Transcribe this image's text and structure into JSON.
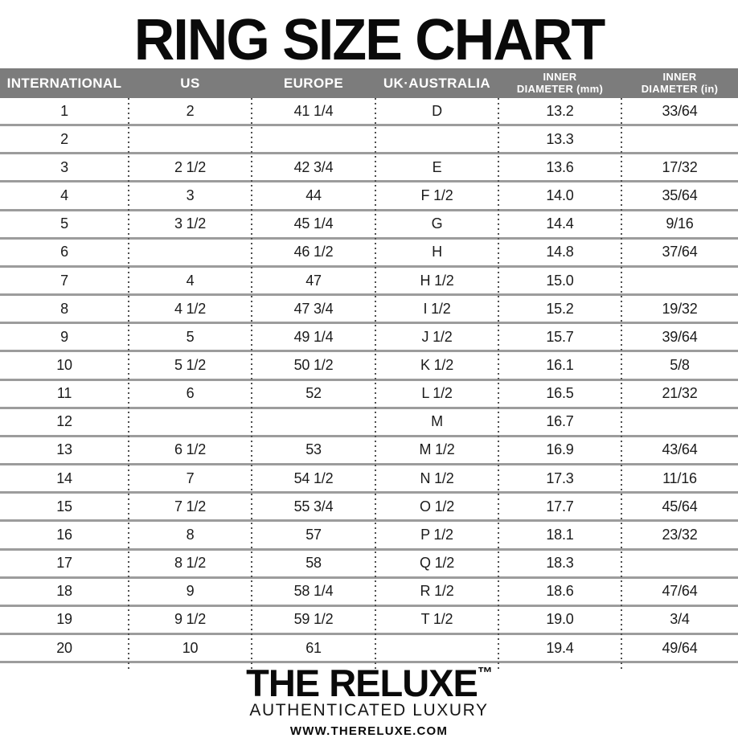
{
  "title": "RING SIZE CHART",
  "chart_data": {
    "type": "table",
    "title": "RING SIZE CHART",
    "columns": [
      "INTERNATIONAL",
      "US",
      "EUROPE",
      "UK·AUSTRALIA",
      "INNER DIAMETER (mm)",
      "INNER DIAMETER (in)"
    ],
    "rows": [
      [
        "1",
        "2",
        "41 1/4",
        "D",
        "13.2",
        "33/64"
      ],
      [
        "2",
        "",
        "",
        "",
        "13.3",
        ""
      ],
      [
        "3",
        "2 1/2",
        "42 3/4",
        "E",
        "13.6",
        "17/32"
      ],
      [
        "4",
        "3",
        "44",
        "F 1/2",
        "14.0",
        "35/64"
      ],
      [
        "5",
        "3 1/2",
        "45 1/4",
        "G",
        "14.4",
        "9/16"
      ],
      [
        "6",
        "",
        "46 1/2",
        "H",
        "14.8",
        "37/64"
      ],
      [
        "7",
        "4",
        "47",
        "H 1/2",
        "15.0",
        ""
      ],
      [
        "8",
        "4 1/2",
        "47 3/4",
        "I 1/2",
        "15.2",
        "19/32"
      ],
      [
        "9",
        "5",
        "49 1/4",
        "J 1/2",
        "15.7",
        "39/64"
      ],
      [
        "10",
        "5 1/2",
        "50 1/2",
        "K 1/2",
        "16.1",
        "5/8"
      ],
      [
        "11",
        "6",
        "52",
        "L 1/2",
        "16.5",
        "21/32"
      ],
      [
        "12",
        "",
        "",
        "M",
        "16.7",
        ""
      ],
      [
        "13",
        "6 1/2",
        "53",
        "M 1/2",
        "16.9",
        "43/64"
      ],
      [
        "14",
        "7",
        "54 1/2",
        "N 1/2",
        "17.3",
        "11/16"
      ],
      [
        "15",
        "7 1/2",
        "55 3/4",
        "O 1/2",
        "17.7",
        "45/64"
      ],
      [
        "16",
        "8",
        "57",
        "P 1/2",
        "18.1",
        "23/32"
      ],
      [
        "17",
        "8 1/2",
        "58",
        "Q 1/2",
        "18.3",
        ""
      ],
      [
        "18",
        "9",
        "58 1/4",
        "R 1/2",
        "18.6",
        "47/64"
      ],
      [
        "19",
        "9 1/2",
        "59 1/2",
        "T 1/2",
        "19.0",
        "3/4"
      ],
      [
        "20",
        "10",
        "61",
        "",
        "19.4",
        "49/64"
      ]
    ]
  },
  "table": {
    "columns": [
      {
        "key": "international",
        "lines": [
          "INTERNATIONAL"
        ]
      },
      {
        "key": "us",
        "lines": [
          "US"
        ]
      },
      {
        "key": "europe",
        "lines": [
          "EUROPE"
        ]
      },
      {
        "key": "uk-australia",
        "lines": [
          "UK·AUSTRALIA"
        ]
      },
      {
        "key": "inner-diameter-mm",
        "lines": [
          "INNER",
          "DIAMETER (mm)"
        ]
      },
      {
        "key": "inner-diameter-in",
        "lines": [
          "INNER",
          "DIAMETER (in)"
        ]
      }
    ]
  },
  "footer": {
    "brand": "THE RELUXE",
    "trademark": "™",
    "tagline": "AUTHENTICATED LUXURY",
    "website": "WWW.THERELUXE.COM"
  },
  "colors": {
    "header_bar": "#7c7c7c",
    "header_text": "#ffffff",
    "row_divider": "#9c9c9c",
    "dotted_separator": "#4f4f4f",
    "body_text": "#1b1b1b",
    "title_text": "#0a0a0a"
  }
}
